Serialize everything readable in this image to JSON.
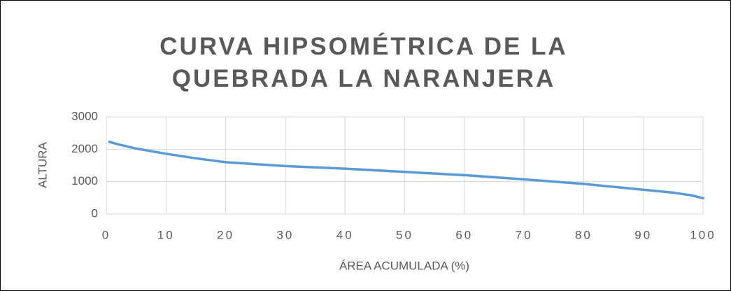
{
  "chart_data": {
    "type": "line",
    "title": "CURVA HIPSOMÉTRICA DE LA QUEBRADA LA NARANJERA",
    "xlabel": "ÁREA ACUMULADA (%)",
    "ylabel": "ALTURA",
    "x": [
      0.5,
      2,
      5,
      10,
      15,
      20,
      30,
      40,
      50,
      60,
      70,
      80,
      90,
      95,
      98,
      100
    ],
    "series": [
      {
        "name": "ALTURA",
        "color": "#5b9bd5",
        "values": [
          2230,
          2150,
          2020,
          1860,
          1720,
          1600,
          1480,
          1400,
          1300,
          1200,
          1070,
          930,
          750,
          660,
          580,
          490
        ]
      }
    ],
    "xlim": [
      0,
      100
    ],
    "xticks": [
      0,
      10,
      20,
      30,
      40,
      50,
      60,
      70,
      80,
      90,
      100
    ],
    "ylim": [
      0,
      3000
    ],
    "yticks": [
      0,
      1000,
      2000,
      3000
    ],
    "grid": true
  }
}
